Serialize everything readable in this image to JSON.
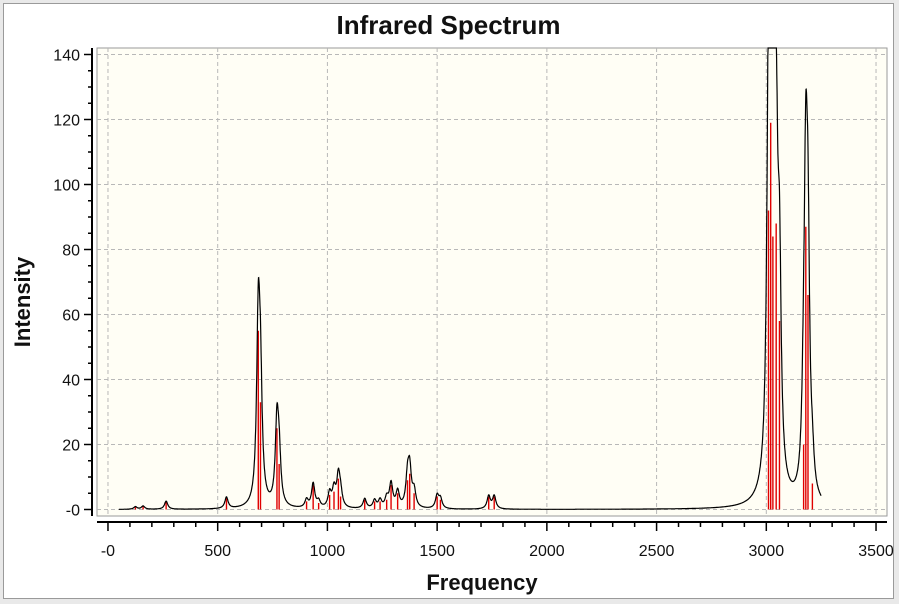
{
  "window": {
    "title": "Infrared Spectrum"
  },
  "colors": {
    "plot_background": "#fffef5",
    "grid": "#b8b8b8",
    "curve": "#000000",
    "stick": "#e00000",
    "axis": "#000000"
  },
  "chart_data": {
    "type": "line",
    "title": "Infrared Spectrum",
    "xlabel": "Frequency",
    "ylabel": "Intensity",
    "xlim": [
      -50,
      3550
    ],
    "ylim": [
      -2,
      142
    ],
    "x_ticks": [
      0,
      500,
      1000,
      1500,
      2000,
      2500,
      3000,
      3500
    ],
    "x_tick_labels": [
      "-0",
      "500",
      "1000",
      "1500",
      "2000",
      "2500",
      "3000",
      "3500"
    ],
    "y_ticks": [
      0,
      20,
      40,
      60,
      80,
      100,
      120,
      140
    ],
    "y_tick_labels": [
      "-0",
      "20",
      "40",
      "60",
      "80",
      "100",
      "120",
      "140"
    ],
    "grid": true,
    "legend": "none",
    "series": [
      {
        "kind": "spectrum",
        "peaks": [
          [
            125,
            0.8
          ],
          [
            160,
            1.0
          ],
          [
            265,
            2.5
          ],
          [
            540,
            3.5
          ],
          [
            685,
            55
          ],
          [
            695,
            33
          ],
          [
            770,
            25
          ],
          [
            780,
            14
          ],
          [
            905,
            2.5
          ],
          [
            935,
            7.5
          ],
          [
            960,
            2
          ],
          [
            1010,
            4.5
          ],
          [
            1030,
            5.5
          ],
          [
            1050,
            9.5
          ],
          [
            1060,
            4
          ],
          [
            1170,
            3
          ],
          [
            1215,
            2.5
          ],
          [
            1240,
            2.5
          ],
          [
            1270,
            3
          ],
          [
            1290,
            7.5
          ],
          [
            1320,
            5
          ],
          [
            1365,
            9
          ],
          [
            1375,
            11
          ],
          [
            1395,
            5
          ],
          [
            1500,
            4
          ],
          [
            1515,
            3
          ],
          [
            1735,
            4
          ],
          [
            1760,
            4
          ],
          [
            3010,
            92
          ],
          [
            3020,
            119
          ],
          [
            3030,
            84
          ],
          [
            3045,
            88
          ],
          [
            3060,
            58
          ],
          [
            3170,
            20
          ],
          [
            3180,
            87
          ],
          [
            3190,
            66
          ],
          [
            3210,
            8
          ]
        ]
      }
    ]
  }
}
